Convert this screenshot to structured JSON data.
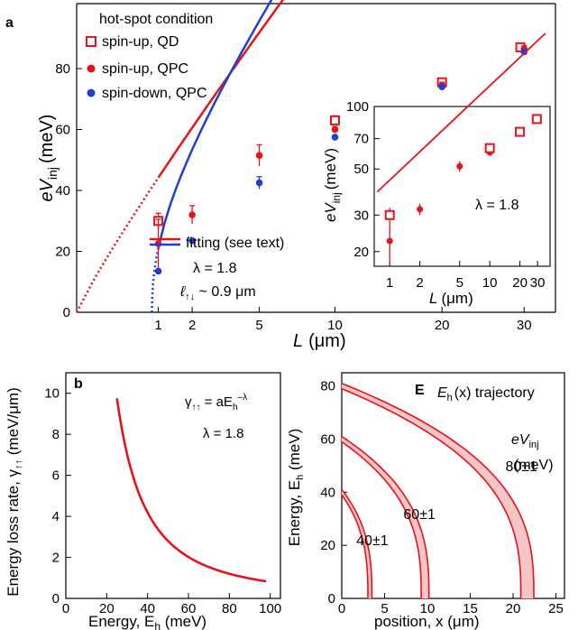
{
  "colors": {
    "red": "#e8121b",
    "blue": "#1d3fd6",
    "band": "#f6c6c6"
  },
  "chart_data": [
    {
      "panel": "a",
      "type": "scatter",
      "xlabel_main": "L",
      "xlabel_unit": "(μm)",
      "ylabel_main": "eV",
      "ylabel_sub": "inj",
      "ylabel_unit": "(meV)",
      "xlim": [
        0,
        36
      ],
      "ylim": [
        0,
        92
      ],
      "xticks": [
        0,
        1,
        2,
        5,
        10,
        20,
        30
      ],
      "yticks": [
        0,
        20,
        40,
        60,
        80
      ],
      "legend": {
        "title": "hot-spot condition",
        "entries": [
          "spin-up, QD",
          "spin-up, QPC",
          "spin-down, QPC"
        ],
        "fit_label": "fitting (see text)",
        "lambda_label": "λ = 1.8",
        "ell_label": "ℓ",
        "ell_sub": "↑↓",
        "ell_value": " ~ 0.9 μm"
      },
      "series": [
        {
          "name": "spin-up, QD",
          "marker": "open-square",
          "color": "red",
          "x": [
            1,
            10,
            20,
            29.5
          ],
          "y": [
            30,
            63,
            75.5,
            87
          ],
          "err": [
            2.5,
            1.5,
            1,
            1
          ]
        },
        {
          "name": "spin-up, QPC",
          "marker": "dot",
          "color": "red",
          "x": [
            1,
            2,
            5,
            10,
            20,
            30
          ],
          "y": [
            22.5,
            32,
            51.5,
            60,
            74.5,
            86.5
          ],
          "err": [
            8,
            3,
            3.5,
            1,
            1,
            1
          ]
        },
        {
          "name": "spin-down, QPC",
          "marker": "dot",
          "color": "blue",
          "x": [
            1,
            2,
            5,
            10,
            20,
            30
          ],
          "y": [
            13.5,
            23.5,
            42.5,
            57.5,
            74,
            85.5
          ],
          "err": [
            0,
            0,
            2,
            0,
            0,
            0
          ]
        }
      ],
      "fits": [
        {
          "name": "fit spin-up",
          "color": "red",
          "a": 44.2,
          "b": 0,
          "p": 0.4545,
          "x0": 0,
          "x1": 33
        },
        {
          "name": "fit spin-down",
          "color": "blue",
          "a": 50.1,
          "b": 0.85,
          "p": 0.4545,
          "x0": 0.85,
          "x1": 33
        }
      ],
      "inset": {
        "type": "scatter",
        "scale": "log-log",
        "xlabel_main": "L",
        "xlabel_unit": "(μm)",
        "ylabel_main": "eV",
        "ylabel_sub": "inj",
        "ylabel_unit": "(meV)",
        "xlim": [
          0.7,
          40
        ],
        "ylim": [
          17,
          100
        ],
        "xticks": [
          1,
          2,
          5,
          10,
          20,
          30
        ],
        "yticks": [
          20,
          30,
          50,
          70,
          100
        ],
        "annotation": "λ = 1.8",
        "qd": {
          "x": [
            1,
            10,
            20,
            29.5
          ],
          "y": [
            30,
            63,
            75.5,
            87
          ],
          "err": [
            2.5,
            1.5,
            1,
            1
          ]
        },
        "qpc": {
          "x": [
            1,
            2,
            5,
            10,
            20,
            30
          ],
          "y": [
            22.5,
            32,
            51.5,
            60,
            74.5,
            86.5
          ],
          "err": [
            5,
            2,
            3,
            1,
            1,
            1
          ]
        },
        "fit": {
          "a": 44.2,
          "p": 0.4545,
          "x0": 0.75,
          "x1": 36
        }
      }
    },
    {
      "panel": "b",
      "type": "line",
      "xlabel_main": "Energy, E",
      "xlabel_sub": "h",
      "xlabel_unit": " (meV)",
      "ylabel_main": "Energy loss rate, γ",
      "ylabel_sub": "↑↑",
      "ylabel_unit": " (meV/μm)",
      "xlim": [
        0,
        105
      ],
      "ylim": [
        0,
        11
      ],
      "xticks": [
        0,
        20,
        40,
        60,
        80,
        100
      ],
      "yticks": [
        0,
        2,
        4,
        6,
        8,
        10
      ],
      "formula_gamma": "γ",
      "formula_gsub": "↑↑",
      "formula_eq": " = aE",
      "formula_esub": "h",
      "formula_sup": "–λ",
      "lambda_label": "λ = 1.8",
      "series": [
        {
          "name": "γ",
          "color": "red",
          "c": 3202,
          "exp": 1.8,
          "x0": 25,
          "x1": 98
        }
      ]
    },
    {
      "panel": "c",
      "type": "line",
      "title_main": "E",
      "title_sub": "h",
      "title_rest": "(x) trajectory",
      "xlabel_main": "position, x",
      "xlabel_unit": " (μm)",
      "ylabel_main": "Energy, E",
      "ylabel_sub": "h",
      "ylabel_unit": " (meV)",
      "xlim": [
        0,
        26
      ],
      "ylim": [
        0,
        85
      ],
      "xticks": [
        0,
        5,
        10,
        15,
        20,
        25
      ],
      "yticks": [
        0,
        20,
        40,
        60,
        80
      ],
      "legend_label": "eV",
      "legend_sub": "inj",
      "legend_unit": "(meV)",
      "series": [
        {
          "name": "40±1",
          "E0": 40,
          "L": 3.28,
          "labelx": 1.7,
          "labely": 20
        },
        {
          "name": "60±1",
          "E0": 60,
          "L": 9.72,
          "labelx": 7.2,
          "labely": 30
        },
        {
          "name": "80±1",
          "E0": 80,
          "L": 21.66,
          "labelx": 19.1,
          "labely": 48
        }
      ],
      "exp": 2.8
    }
  ]
}
